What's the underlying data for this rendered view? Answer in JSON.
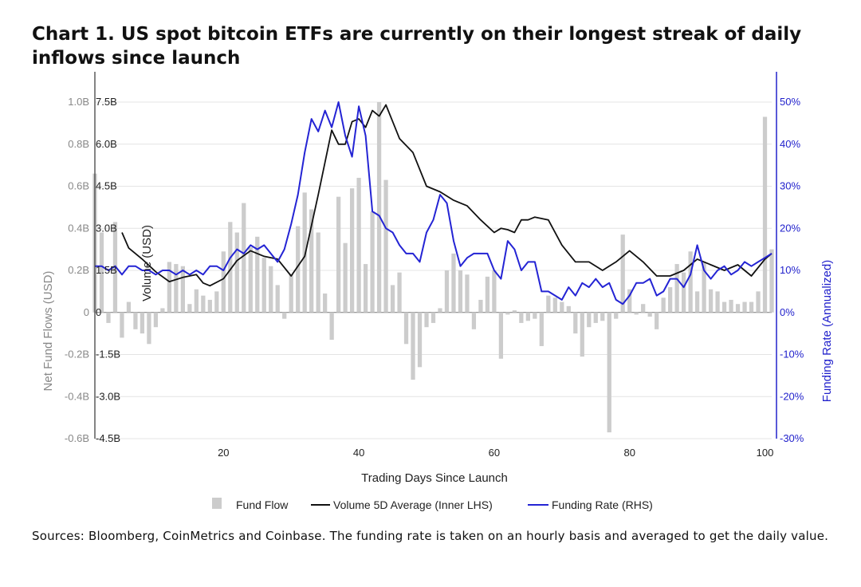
{
  "title": "Chart 1. US spot bitcoin ETFs are currently on their longest streak of daily inflows since launch",
  "sources": "Sources: Bloomberg, CoinMetrics and Coinbase. The funding rate is taken on an hourly basis and averaged to get the daily value.",
  "chart_data": {
    "type": "bar",
    "xlabel": "Trading Days Since Launch",
    "y_outer_left_label": "Net Fund Flows (USD)",
    "y_inner_left_label": "Volume (USD)",
    "y_right_label": "Funding Rate (Annualized)",
    "xlim": [
      1,
      101
    ],
    "xticks": [
      20,
      40,
      60,
      80,
      100
    ],
    "xtick_labels": [
      "20",
      "40",
      "60",
      "80",
      "100"
    ],
    "y_outer_left": {
      "ylim": [
        -0.6,
        1.0
      ],
      "ticks": [
        -0.6,
        -0.4,
        -0.2,
        0,
        0.2,
        0.4,
        0.6,
        0.8,
        1.0
      ],
      "tick_labels": [
        "-0.6B",
        "-0.4B",
        "-0.2B",
        "0",
        "0.2B",
        "0.4B",
        "0.6B",
        "0.8B",
        "1.0B"
      ]
    },
    "y_inner_left": {
      "ylim": [
        -4.5,
        7.5
      ],
      "ticks": [
        -4.5,
        -3.0,
        -1.5,
        0,
        1.5,
        3.0,
        4.5,
        6.0,
        7.5
      ],
      "tick_labels": [
        "-4.5B",
        "-3.0B",
        "-1.5B",
        "0",
        "1.5B",
        "3.0B",
        "4.5B",
        "6.0B",
        "7.5B"
      ]
    },
    "y_right": {
      "ylim": [
        -30,
        50
      ],
      "ticks": [
        -30,
        -20,
        -10,
        0,
        10,
        20,
        30,
        40,
        50
      ],
      "tick_labels": [
        "-30%",
        "-20%",
        "-10%",
        "0%",
        "10%",
        "20%",
        "30%",
        "40%",
        "50%"
      ]
    },
    "grid": true,
    "legend_position": "bottom",
    "colors": {
      "fund_flow": "#cccccc",
      "volume": "#111111",
      "funding": "#2424d4",
      "left_axis": "#888888",
      "right_axis": "#2222cc"
    },
    "series": [
      {
        "name": "Fund Flow",
        "axis": "outer_left",
        "kind": "bar",
        "x": [
          1,
          2,
          3,
          4,
          5,
          6,
          7,
          8,
          9,
          10,
          11,
          12,
          13,
          14,
          15,
          16,
          17,
          18,
          19,
          20,
          21,
          22,
          23,
          24,
          25,
          26,
          27,
          28,
          29,
          30,
          31,
          32,
          33,
          34,
          35,
          36,
          37,
          38,
          39,
          40,
          41,
          42,
          43,
          44,
          45,
          46,
          47,
          48,
          49,
          50,
          51,
          52,
          53,
          54,
          55,
          56,
          57,
          58,
          59,
          60,
          61,
          62,
          63,
          64,
          65,
          66,
          67,
          68,
          69,
          70,
          71,
          72,
          73,
          74,
          75,
          76,
          77,
          78,
          79,
          80,
          81,
          82,
          83,
          84,
          85,
          86,
          87,
          88,
          89,
          90,
          91,
          92,
          93,
          94,
          95,
          96,
          97,
          98,
          99,
          100,
          101
        ],
        "values": [
          0.66,
          0.38,
          -0.05,
          0.43,
          -0.12,
          0.05,
          -0.08,
          -0.1,
          -0.15,
          -0.07,
          0.02,
          0.24,
          0.23,
          0.22,
          0.04,
          0.11,
          0.08,
          0.06,
          0.1,
          0.29,
          0.43,
          0.38,
          0.52,
          0.31,
          0.36,
          0.26,
          0.22,
          0.13,
          -0.03,
          0.18,
          0.41,
          0.57,
          0.49,
          0.38,
          0.09,
          -0.13,
          0.55,
          0.33,
          0.59,
          0.64,
          0.23,
          0.48,
          1.0,
          0.63,
          0.13,
          0.19,
          -0.15,
          -0.32,
          -0.26,
          -0.07,
          -0.05,
          0.02,
          0.2,
          0.28,
          0.2,
          0.18,
          -0.08,
          0.06,
          0.17,
          0.2,
          -0.22,
          -0.01,
          0.01,
          -0.05,
          -0.04,
          -0.03,
          -0.16,
          0.08,
          0.07,
          0.05,
          0.03,
          -0.1,
          -0.21,
          -0.07,
          -0.05,
          -0.04,
          -0.57,
          -0.03,
          0.37,
          0.11,
          -0.01,
          0.04,
          -0.02,
          -0.08,
          0.07,
          0.12,
          0.23,
          0.19,
          0.29,
          0.1,
          0.24,
          0.11,
          0.1,
          0.05,
          0.06,
          0.04,
          0.05,
          0.05,
          0.1,
          0.93,
          0.3
        ]
      },
      {
        "name": "Volume 5D Average (Inner LHS)",
        "axis": "inner_left",
        "kind": "line",
        "x": [
          5,
          6,
          8,
          10,
          12,
          14,
          16,
          17,
          18,
          20,
          22,
          24,
          26,
          28,
          30,
          32,
          34,
          36,
          37,
          38,
          39,
          40,
          41,
          42,
          43,
          44,
          45,
          46,
          48,
          50,
          52,
          54,
          56,
          58,
          60,
          61,
          62,
          63,
          64,
          65,
          66,
          68,
          70,
          72,
          74,
          76,
          78,
          80,
          82,
          84,
          86,
          88,
          90,
          92,
          94,
          96,
          98,
          100,
          101
        ],
        "values": [
          2.85,
          2.3,
          1.9,
          1.45,
          1.1,
          1.25,
          1.35,
          1.05,
          0.95,
          1.2,
          1.85,
          2.2,
          2.0,
          1.9,
          1.3,
          2.0,
          4.2,
          6.5,
          6.0,
          6.0,
          6.8,
          6.9,
          6.6,
          7.2,
          7.0,
          7.4,
          6.8,
          6.2,
          5.7,
          4.5,
          4.3,
          4.0,
          3.8,
          3.3,
          2.85,
          3.0,
          2.95,
          2.85,
          3.3,
          3.3,
          3.4,
          3.3,
          2.4,
          1.8,
          1.8,
          1.5,
          1.8,
          2.2,
          1.8,
          1.3,
          1.3,
          1.5,
          1.9,
          1.7,
          1.5,
          1.7,
          1.3,
          1.9,
          2.1
        ]
      },
      {
        "name": "Funding Rate (RHS)",
        "axis": "right",
        "kind": "line",
        "x": [
          1,
          2,
          3,
          4,
          5,
          6,
          7,
          8,
          9,
          10,
          11,
          12,
          13,
          14,
          15,
          16,
          17,
          18,
          19,
          20,
          21,
          22,
          23,
          24,
          25,
          26,
          27,
          28,
          29,
          30,
          31,
          32,
          33,
          34,
          35,
          36,
          37,
          38,
          39,
          40,
          41,
          42,
          43,
          44,
          45,
          46,
          47,
          48,
          49,
          50,
          51,
          52,
          53,
          54,
          55,
          56,
          57,
          58,
          59,
          60,
          61,
          62,
          63,
          64,
          65,
          66,
          67,
          68,
          69,
          70,
          71,
          72,
          73,
          74,
          75,
          76,
          77,
          78,
          79,
          80,
          81,
          82,
          83,
          84,
          85,
          86,
          87,
          88,
          89,
          90,
          91,
          92,
          93,
          94,
          95,
          96,
          97,
          98,
          99,
          100,
          101
        ],
        "values": [
          11,
          11,
          10,
          11,
          9,
          11,
          11,
          10,
          10,
          9,
          10,
          10,
          9,
          10,
          9,
          10,
          9,
          11,
          11,
          10,
          13,
          15,
          14,
          16,
          15,
          16,
          14,
          12,
          15,
          21,
          28,
          38,
          46,
          43,
          48,
          44,
          50,
          42,
          37,
          49,
          42,
          24,
          23,
          20,
          19,
          16,
          14,
          14,
          12,
          19,
          22,
          28,
          26,
          17,
          11,
          13,
          14,
          14,
          14,
          10,
          8,
          17,
          15,
          10,
          12,
          12,
          5,
          5,
          4,
          3,
          6,
          4,
          7,
          6,
          8,
          6,
          7,
          3,
          2,
          4,
          7,
          7,
          8,
          4,
          5,
          8,
          8,
          6,
          9,
          16,
          10,
          8,
          10,
          11,
          9,
          10,
          12,
          11,
          12,
          13,
          14
        ]
      }
    ],
    "legend": [
      "Fund Flow",
      "Volume 5D Average (Inner LHS)",
      "Funding Rate (RHS)"
    ]
  }
}
